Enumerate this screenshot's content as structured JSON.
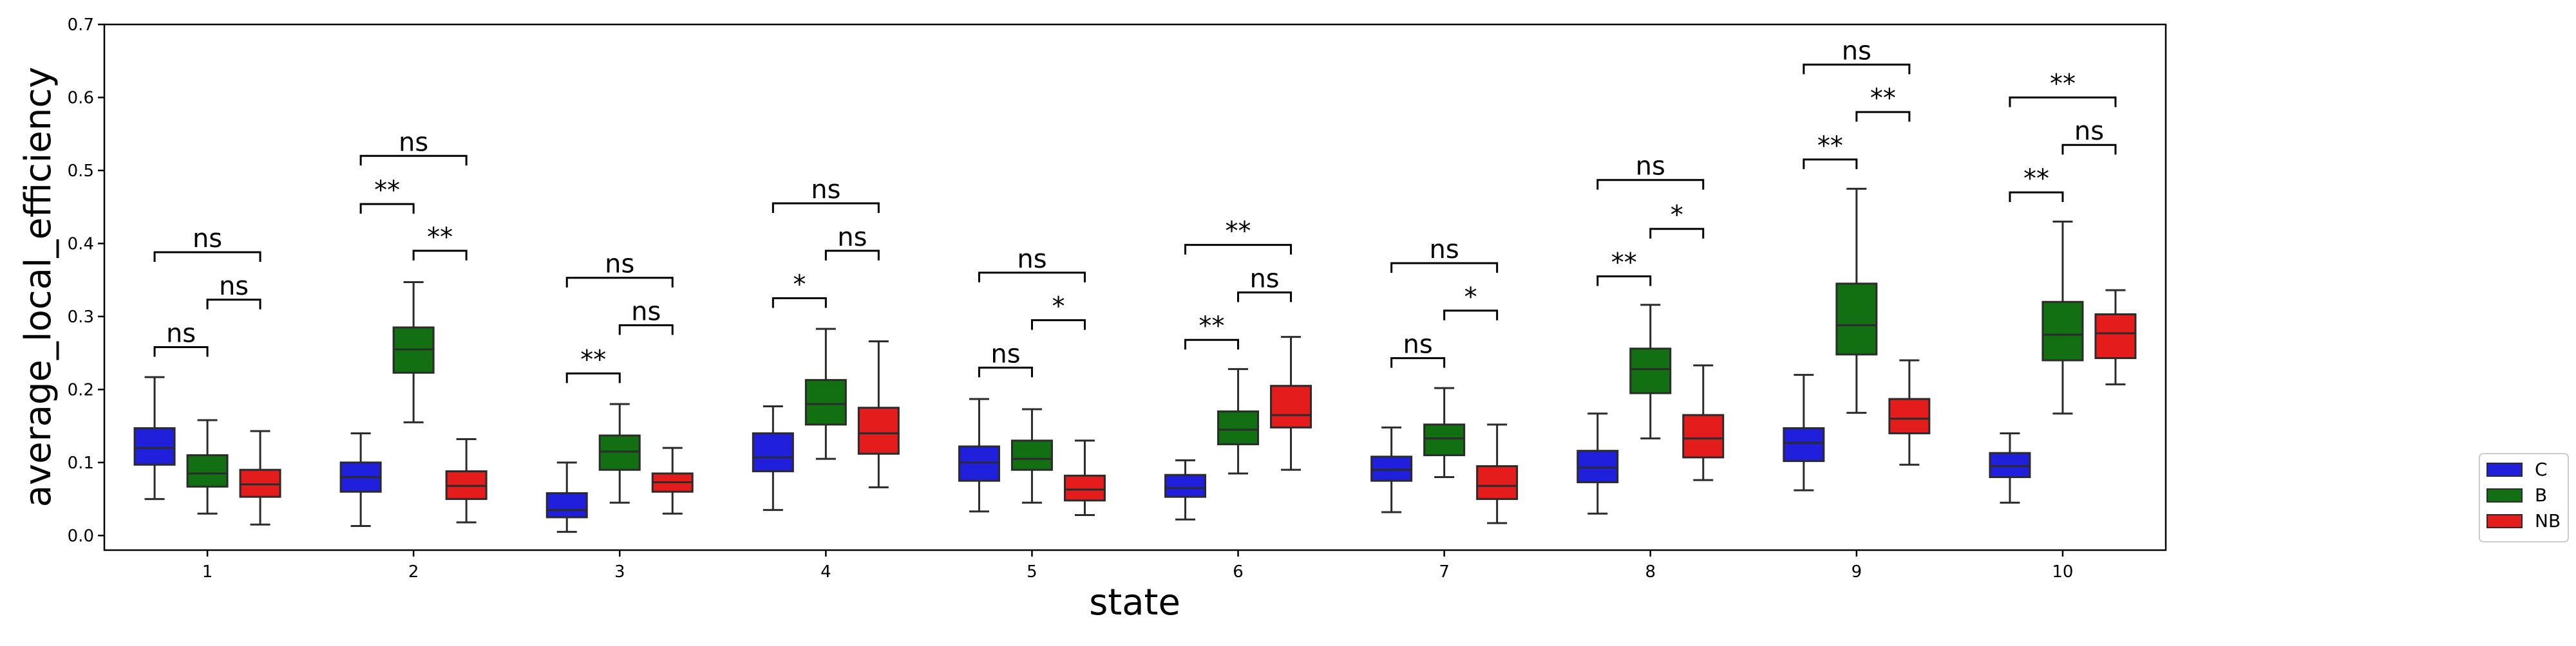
{
  "chart_data": {
    "type": "box",
    "xlabel": "state",
    "ylabel": "average_local_efficiency",
    "ylim": [
      -0.02,
      0.7
    ],
    "yticks": [
      0.0,
      0.1,
      0.2,
      0.3,
      0.4,
      0.5,
      0.6,
      0.7
    ],
    "ytick_labels": [
      "0.0",
      "0.1",
      "0.2",
      "0.3",
      "0.4",
      "0.5",
      "0.6",
      "0.7"
    ],
    "categories": [
      "1",
      "2",
      "3",
      "4",
      "5",
      "6",
      "7",
      "8",
      "9",
      "10"
    ],
    "grid": false,
    "legend_position": "right, outside plot, lower",
    "series": [
      {
        "name": "C",
        "color": "#1f1fdc",
        "boxes": [
          {
            "min": 0.05,
            "q1": 0.097,
            "median": 0.12,
            "q3": 0.147,
            "max": 0.217
          },
          {
            "min": 0.013,
            "q1": 0.06,
            "median": 0.08,
            "q3": 0.1,
            "max": 0.14
          },
          {
            "min": 0.005,
            "q1": 0.025,
            "median": 0.035,
            "q3": 0.058,
            "max": 0.1
          },
          {
            "min": 0.035,
            "q1": 0.088,
            "median": 0.107,
            "q3": 0.14,
            "max": 0.177
          },
          {
            "min": 0.033,
            "q1": 0.075,
            "median": 0.1,
            "q3": 0.122,
            "max": 0.187
          },
          {
            "min": 0.022,
            "q1": 0.053,
            "median": 0.065,
            "q3": 0.083,
            "max": 0.103
          },
          {
            "min": 0.032,
            "q1": 0.075,
            "median": 0.09,
            "q3": 0.108,
            "max": 0.148
          },
          {
            "min": 0.03,
            "q1": 0.073,
            "median": 0.093,
            "q3": 0.116,
            "max": 0.167
          },
          {
            "min": 0.062,
            "q1": 0.102,
            "median": 0.127,
            "q3": 0.147,
            "max": 0.22
          },
          {
            "min": 0.045,
            "q1": 0.08,
            "median": 0.095,
            "q3": 0.113,
            "max": 0.14
          }
        ]
      },
      {
        "name": "B",
        "color": "#127012",
        "boxes": [
          {
            "min": 0.03,
            "q1": 0.067,
            "median": 0.085,
            "q3": 0.11,
            "max": 0.158
          },
          {
            "min": 0.155,
            "q1": 0.223,
            "median": 0.255,
            "q3": 0.285,
            "max": 0.347
          },
          {
            "min": 0.045,
            "q1": 0.09,
            "median": 0.115,
            "q3": 0.137,
            "max": 0.18
          },
          {
            "min": 0.105,
            "q1": 0.152,
            "median": 0.18,
            "q3": 0.213,
            "max": 0.283
          },
          {
            "min": 0.045,
            "q1": 0.09,
            "median": 0.105,
            "q3": 0.13,
            "max": 0.173
          },
          {
            "min": 0.085,
            "q1": 0.125,
            "median": 0.145,
            "q3": 0.17,
            "max": 0.228
          },
          {
            "min": 0.08,
            "q1": 0.11,
            "median": 0.133,
            "q3": 0.152,
            "max": 0.202
          },
          {
            "min": 0.133,
            "q1": 0.195,
            "median": 0.228,
            "q3": 0.256,
            "max": 0.316
          },
          {
            "min": 0.168,
            "q1": 0.248,
            "median": 0.288,
            "q3": 0.345,
            "max": 0.475
          },
          {
            "min": 0.167,
            "q1": 0.24,
            "median": 0.275,
            "q3": 0.32,
            "max": 0.43
          }
        ]
      },
      {
        "name": "NB",
        "color": "#e41c1c",
        "boxes": [
          {
            "min": 0.015,
            "q1": 0.053,
            "median": 0.07,
            "q3": 0.09,
            "max": 0.143
          },
          {
            "min": 0.018,
            "q1": 0.05,
            "median": 0.068,
            "q3": 0.088,
            "max": 0.132
          },
          {
            "min": 0.03,
            "q1": 0.06,
            "median": 0.073,
            "q3": 0.085,
            "max": 0.12
          },
          {
            "min": 0.066,
            "q1": 0.112,
            "median": 0.14,
            "q3": 0.175,
            "max": 0.266
          },
          {
            "min": 0.028,
            "q1": 0.048,
            "median": 0.063,
            "q3": 0.082,
            "max": 0.13
          },
          {
            "min": 0.09,
            "q1": 0.148,
            "median": 0.165,
            "q3": 0.205,
            "max": 0.272
          },
          {
            "min": 0.017,
            "q1": 0.05,
            "median": 0.068,
            "q3": 0.095,
            "max": 0.152
          },
          {
            "min": 0.076,
            "q1": 0.107,
            "median": 0.133,
            "q3": 0.165,
            "max": 0.233
          },
          {
            "min": 0.097,
            "q1": 0.14,
            "median": 0.16,
            "q3": 0.187,
            "max": 0.24
          },
          {
            "min": 0.207,
            "q1": 0.243,
            "median": 0.277,
            "q3": 0.303,
            "max": 0.336
          }
        ]
      }
    ],
    "annotations": [
      {
        "category": "1",
        "pair": [
          "C",
          "B"
        ],
        "label": "ns",
        "y": 0.258
      },
      {
        "category": "1",
        "pair": [
          "B",
          "NB"
        ],
        "label": "ns",
        "y": 0.323
      },
      {
        "category": "1",
        "pair": [
          "C",
          "NB"
        ],
        "label": "ns",
        "y": 0.388
      },
      {
        "category": "2",
        "pair": [
          "C",
          "B"
        ],
        "label": "**",
        "y": 0.454
      },
      {
        "category": "2",
        "pair": [
          "B",
          "NB"
        ],
        "label": "**",
        "y": 0.39
      },
      {
        "category": "2",
        "pair": [
          "C",
          "NB"
        ],
        "label": "ns",
        "y": 0.52
      },
      {
        "category": "3",
        "pair": [
          "C",
          "B"
        ],
        "label": "**",
        "y": 0.222
      },
      {
        "category": "3",
        "pair": [
          "B",
          "NB"
        ],
        "label": "ns",
        "y": 0.288
      },
      {
        "category": "3",
        "pair": [
          "C",
          "NB"
        ],
        "label": "ns",
        "y": 0.353
      },
      {
        "category": "4",
        "pair": [
          "C",
          "B"
        ],
        "label": "*",
        "y": 0.325
      },
      {
        "category": "4",
        "pair": [
          "B",
          "NB"
        ],
        "label": "ns",
        "y": 0.39
      },
      {
        "category": "4",
        "pair": [
          "C",
          "NB"
        ],
        "label": "ns",
        "y": 0.455
      },
      {
        "category": "5",
        "pair": [
          "C",
          "B"
        ],
        "label": "ns",
        "y": 0.23
      },
      {
        "category": "5",
        "pair": [
          "B",
          "NB"
        ],
        "label": "*",
        "y": 0.295
      },
      {
        "category": "5",
        "pair": [
          "C",
          "NB"
        ],
        "label": "ns",
        "y": 0.36
      },
      {
        "category": "6",
        "pair": [
          "C",
          "B"
        ],
        "label": "**",
        "y": 0.268
      },
      {
        "category": "6",
        "pair": [
          "B",
          "NB"
        ],
        "label": "ns",
        "y": 0.333
      },
      {
        "category": "6",
        "pair": [
          "C",
          "NB"
        ],
        "label": "**",
        "y": 0.398
      },
      {
        "category": "7",
        "pair": [
          "C",
          "B"
        ],
        "label": "ns",
        "y": 0.243
      },
      {
        "category": "7",
        "pair": [
          "B",
          "NB"
        ],
        "label": "*",
        "y": 0.308
      },
      {
        "category": "7",
        "pair": [
          "C",
          "NB"
        ],
        "label": "ns",
        "y": 0.373
      },
      {
        "category": "8",
        "pair": [
          "C",
          "B"
        ],
        "label": "**",
        "y": 0.355
      },
      {
        "category": "8",
        "pair": [
          "B",
          "NB"
        ],
        "label": "*",
        "y": 0.42
      },
      {
        "category": "8",
        "pair": [
          "C",
          "NB"
        ],
        "label": "ns",
        "y": 0.487
      },
      {
        "category": "9",
        "pair": [
          "C",
          "B"
        ],
        "label": "**",
        "y": 0.515
      },
      {
        "category": "9",
        "pair": [
          "B",
          "NB"
        ],
        "label": "**",
        "y": 0.58
      },
      {
        "category": "9",
        "pair": [
          "C",
          "NB"
        ],
        "label": "ns",
        "y": 0.645
      },
      {
        "category": "10",
        "pair": [
          "C",
          "B"
        ],
        "label": "**",
        "y": 0.47
      },
      {
        "category": "10",
        "pair": [
          "B",
          "NB"
        ],
        "label": "ns",
        "y": 0.535
      },
      {
        "category": "10",
        "pair": [
          "C",
          "NB"
        ],
        "label": "**",
        "y": 0.6
      }
    ]
  }
}
